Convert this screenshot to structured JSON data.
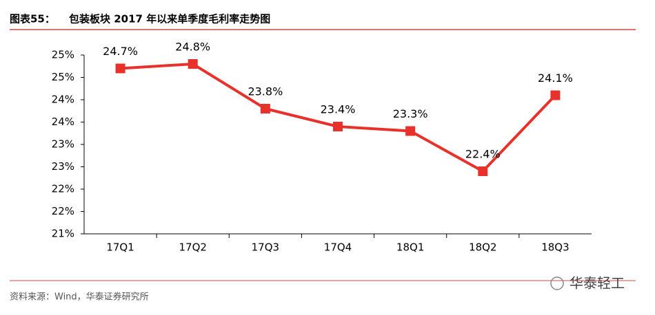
{
  "chart_data": {
    "type": "line",
    "title_label": "图表55：",
    "title": "包装板块 2017 年以来单季度毛利率走势图",
    "categories": [
      "17Q1",
      "17Q2",
      "17Q3",
      "17Q4",
      "18Q1",
      "18Q2",
      "18Q3"
    ],
    "values": [
      24.7,
      24.8,
      23.8,
      23.4,
      23.3,
      22.4,
      24.1
    ],
    "value_labels": [
      "24.7%",
      "24.8%",
      "23.8%",
      "23.4%",
      "23.3%",
      "22.4%",
      "24.1%"
    ],
    "color": "#e8312a",
    "ylim": [
      21,
      25
    ],
    "yticks": [
      {
        "value": 21,
        "label": "21%"
      },
      {
        "value": 21.5,
        "label": "22%"
      },
      {
        "value": 22,
        "label": "22%"
      },
      {
        "value": 22.5,
        "label": "23%"
      },
      {
        "value": 23,
        "label": "23%"
      },
      {
        "value": 23.5,
        "label": "24%"
      },
      {
        "value": 24,
        "label": "24%"
      },
      {
        "value": 24.5,
        "label": "25%"
      },
      {
        "value": 25,
        "label": "25%"
      }
    ],
    "grid": false,
    "source": "资料来源：Wind，华泰证券研究所",
    "watermark": "华泰轻工"
  }
}
